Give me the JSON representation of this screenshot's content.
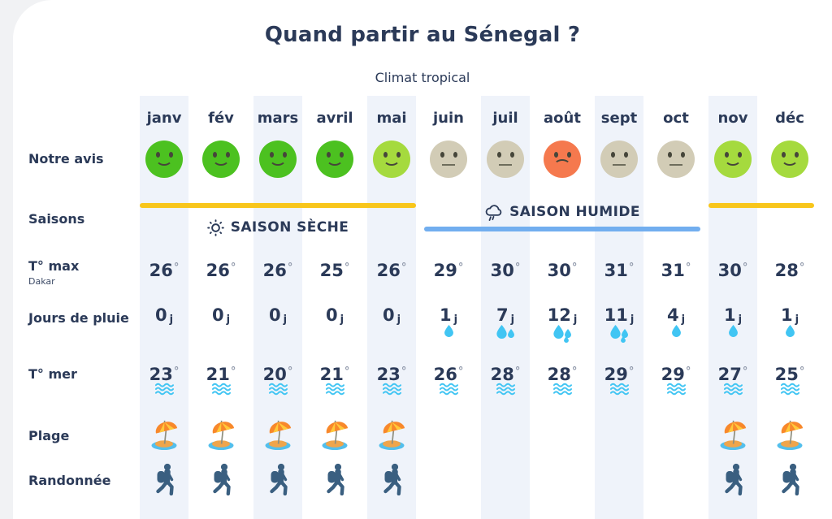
{
  "header": {
    "title": "Quand partir au Sénegal ?",
    "subtitle": "Climat tropical"
  },
  "row_labels": {
    "advice": "Notre avis",
    "seasons": "Saisons",
    "temp_max": "T° max",
    "temp_max_sub": "Dakar",
    "rain_days": "Jours de pluie",
    "sea_temp": "T° mer",
    "beach": "Plage",
    "hiking": "Randonnée"
  },
  "seasons": {
    "dry_label": "SAISON SÈCHE",
    "wet_label": "SAISON HUMIDE",
    "dry_icon": "sun-icon",
    "wet_icon": "rain-cloud-icon"
  },
  "units": {
    "degree": "°",
    "rain": "j"
  },
  "colors": {
    "navy_text": "#2B3A58",
    "card_bg": "#FFFFFF",
    "page_bg": "#F1F2F4",
    "column_stripe": "#EFF3FA",
    "dry_bar_yellow": "#F8C61B",
    "wet_bar_blue": "#72AEEF",
    "water_blue": "#41C5F3",
    "hiker_blue": "#3A5F80",
    "degree_gray": "#8E97A9"
  },
  "rating_colors": {
    "great": "#4CC120",
    "good": "#A5DA3E",
    "average": "#D2CCB6",
    "bad": "#F5794E"
  },
  "months": [
    {
      "label": "janv",
      "rating": "great",
      "t_max": "26",
      "rain_days": "0",
      "drops": 0,
      "t_sea": "23",
      "beach": true,
      "hike": true,
      "striped": true
    },
    {
      "label": "fév",
      "rating": "great",
      "t_max": "26",
      "rain_days": "0",
      "drops": 0,
      "t_sea": "21",
      "beach": true,
      "hike": true,
      "striped": false
    },
    {
      "label": "mars",
      "rating": "great",
      "t_max": "26",
      "rain_days": "0",
      "drops": 0,
      "t_sea": "20",
      "beach": true,
      "hike": true,
      "striped": true
    },
    {
      "label": "avril",
      "rating": "great",
      "t_max": "25",
      "rain_days": "0",
      "drops": 0,
      "t_sea": "21",
      "beach": true,
      "hike": true,
      "striped": false
    },
    {
      "label": "mai",
      "rating": "good",
      "t_max": "26",
      "rain_days": "0",
      "drops": 0,
      "t_sea": "23",
      "beach": true,
      "hike": true,
      "striped": true
    },
    {
      "label": "juin",
      "rating": "average",
      "t_max": "29",
      "rain_days": "1",
      "drops": 1,
      "t_sea": "26",
      "beach": false,
      "hike": false,
      "striped": false
    },
    {
      "label": "juil",
      "rating": "average",
      "t_max": "30",
      "rain_days": "7",
      "drops": 2,
      "t_sea": "28",
      "beach": false,
      "hike": false,
      "striped": true
    },
    {
      "label": "août",
      "rating": "bad",
      "t_max": "30",
      "rain_days": "12",
      "drops": 3,
      "t_sea": "28",
      "beach": false,
      "hike": false,
      "striped": false
    },
    {
      "label": "sept",
      "rating": "average",
      "t_max": "31",
      "rain_days": "11",
      "drops": 3,
      "t_sea": "29",
      "beach": false,
      "hike": false,
      "striped": true
    },
    {
      "label": "oct",
      "rating": "average",
      "t_max": "31",
      "rain_days": "4",
      "drops": 1,
      "t_sea": "29",
      "beach": false,
      "hike": false,
      "striped": false
    },
    {
      "label": "nov",
      "rating": "good",
      "t_max": "30",
      "rain_days": "1",
      "drops": 1,
      "t_sea": "27",
      "beach": true,
      "hike": true,
      "striped": true
    },
    {
      "label": "déc",
      "rating": "good",
      "t_max": "28",
      "rain_days": "1",
      "drops": 1,
      "t_sea": "25",
      "beach": true,
      "hike": true,
      "striped": false
    }
  ],
  "chart_data": {
    "type": "table",
    "title": "Quand partir au Sénegal ?",
    "subtitle": "Climat tropical",
    "categories": [
      "janv",
      "fév",
      "mars",
      "avril",
      "mai",
      "juin",
      "juil",
      "août",
      "sept",
      "oct",
      "nov",
      "déc"
    ],
    "series": [
      {
        "name": "Notre avis",
        "values": [
          "great",
          "great",
          "great",
          "great",
          "good",
          "average",
          "average",
          "bad",
          "average",
          "average",
          "good",
          "good"
        ]
      },
      {
        "name": "Saisons",
        "values": [
          "sèche",
          "sèche",
          "sèche",
          "sèche",
          "sèche",
          "humide",
          "humide",
          "humide",
          "humide",
          "humide",
          "sèche",
          "sèche"
        ]
      },
      {
        "name": "T° max Dakar (°C)",
        "values": [
          26,
          26,
          26,
          25,
          26,
          29,
          30,
          30,
          31,
          31,
          30,
          28
        ]
      },
      {
        "name": "Jours de pluie (j)",
        "values": [
          0,
          0,
          0,
          0,
          0,
          1,
          7,
          12,
          11,
          4,
          1,
          1
        ]
      },
      {
        "name": "T° mer (°C)",
        "values": [
          23,
          21,
          20,
          21,
          23,
          26,
          28,
          28,
          29,
          29,
          27,
          25
        ]
      },
      {
        "name": "Plage",
        "values": [
          true,
          true,
          true,
          true,
          true,
          false,
          false,
          false,
          false,
          false,
          true,
          true
        ]
      },
      {
        "name": "Randonnée",
        "values": [
          true,
          true,
          true,
          true,
          true,
          false,
          false,
          false,
          false,
          false,
          true,
          true
        ]
      }
    ],
    "legend_position": "none",
    "grid": false
  }
}
